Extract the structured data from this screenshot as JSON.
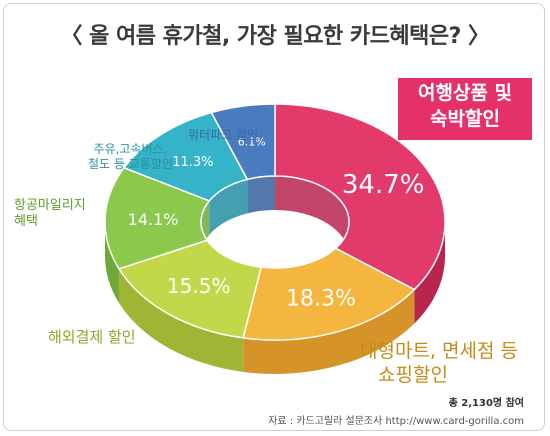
{
  "title": "〈 올 여름 휴가철, 가장 필요한 카드혜택은? 〉",
  "chart_data": {
    "type": "pie",
    "variant": "3d-donut",
    "categories": [
      "여행상품 및 숙박할인",
      "대형마트, 면세점 등 쇼핑할인",
      "해외결제 할인",
      "항공마일리지 혜택",
      "주유,고속버스, 철도 등 교통할인",
      "워터파크 할인"
    ],
    "values": [
      34.7,
      18.3,
      15.5,
      14.1,
      11.3,
      6.1
    ],
    "value_labels": [
      "34.7%",
      "18.3%",
      "15.5%",
      "14.1%",
      "11.3%",
      "6.1%"
    ],
    "colors": [
      "#e23a6a",
      "#f4b63e",
      "#c2d84a",
      "#8cc84b",
      "#35b3c9",
      "#4a7bbf"
    ],
    "side_colors": [
      "#b82650",
      "#d6932a",
      "#9fb634",
      "#6fa838",
      "#238fa3",
      "#35609d"
    ]
  },
  "labels": {
    "travel_line1": "여행상품 및",
    "travel_line2": "숙박할인",
    "shopping_line1": "대형마트, 면세점 등",
    "shopping_line2": "쇼핑할인",
    "overseas": "해외결제 할인",
    "mileage_line1": "항공마일리지",
    "mileage_line2": "혜택",
    "transport_line1": "주유,고속버스,",
    "transport_line2": "철도 등 교통할인",
    "waterpark": "워터파크 할인"
  },
  "footer": {
    "total": "총 2,130명 참여",
    "source": "자료 : 카드고릴라 설문조사 http://www.card-gorilla.com"
  }
}
